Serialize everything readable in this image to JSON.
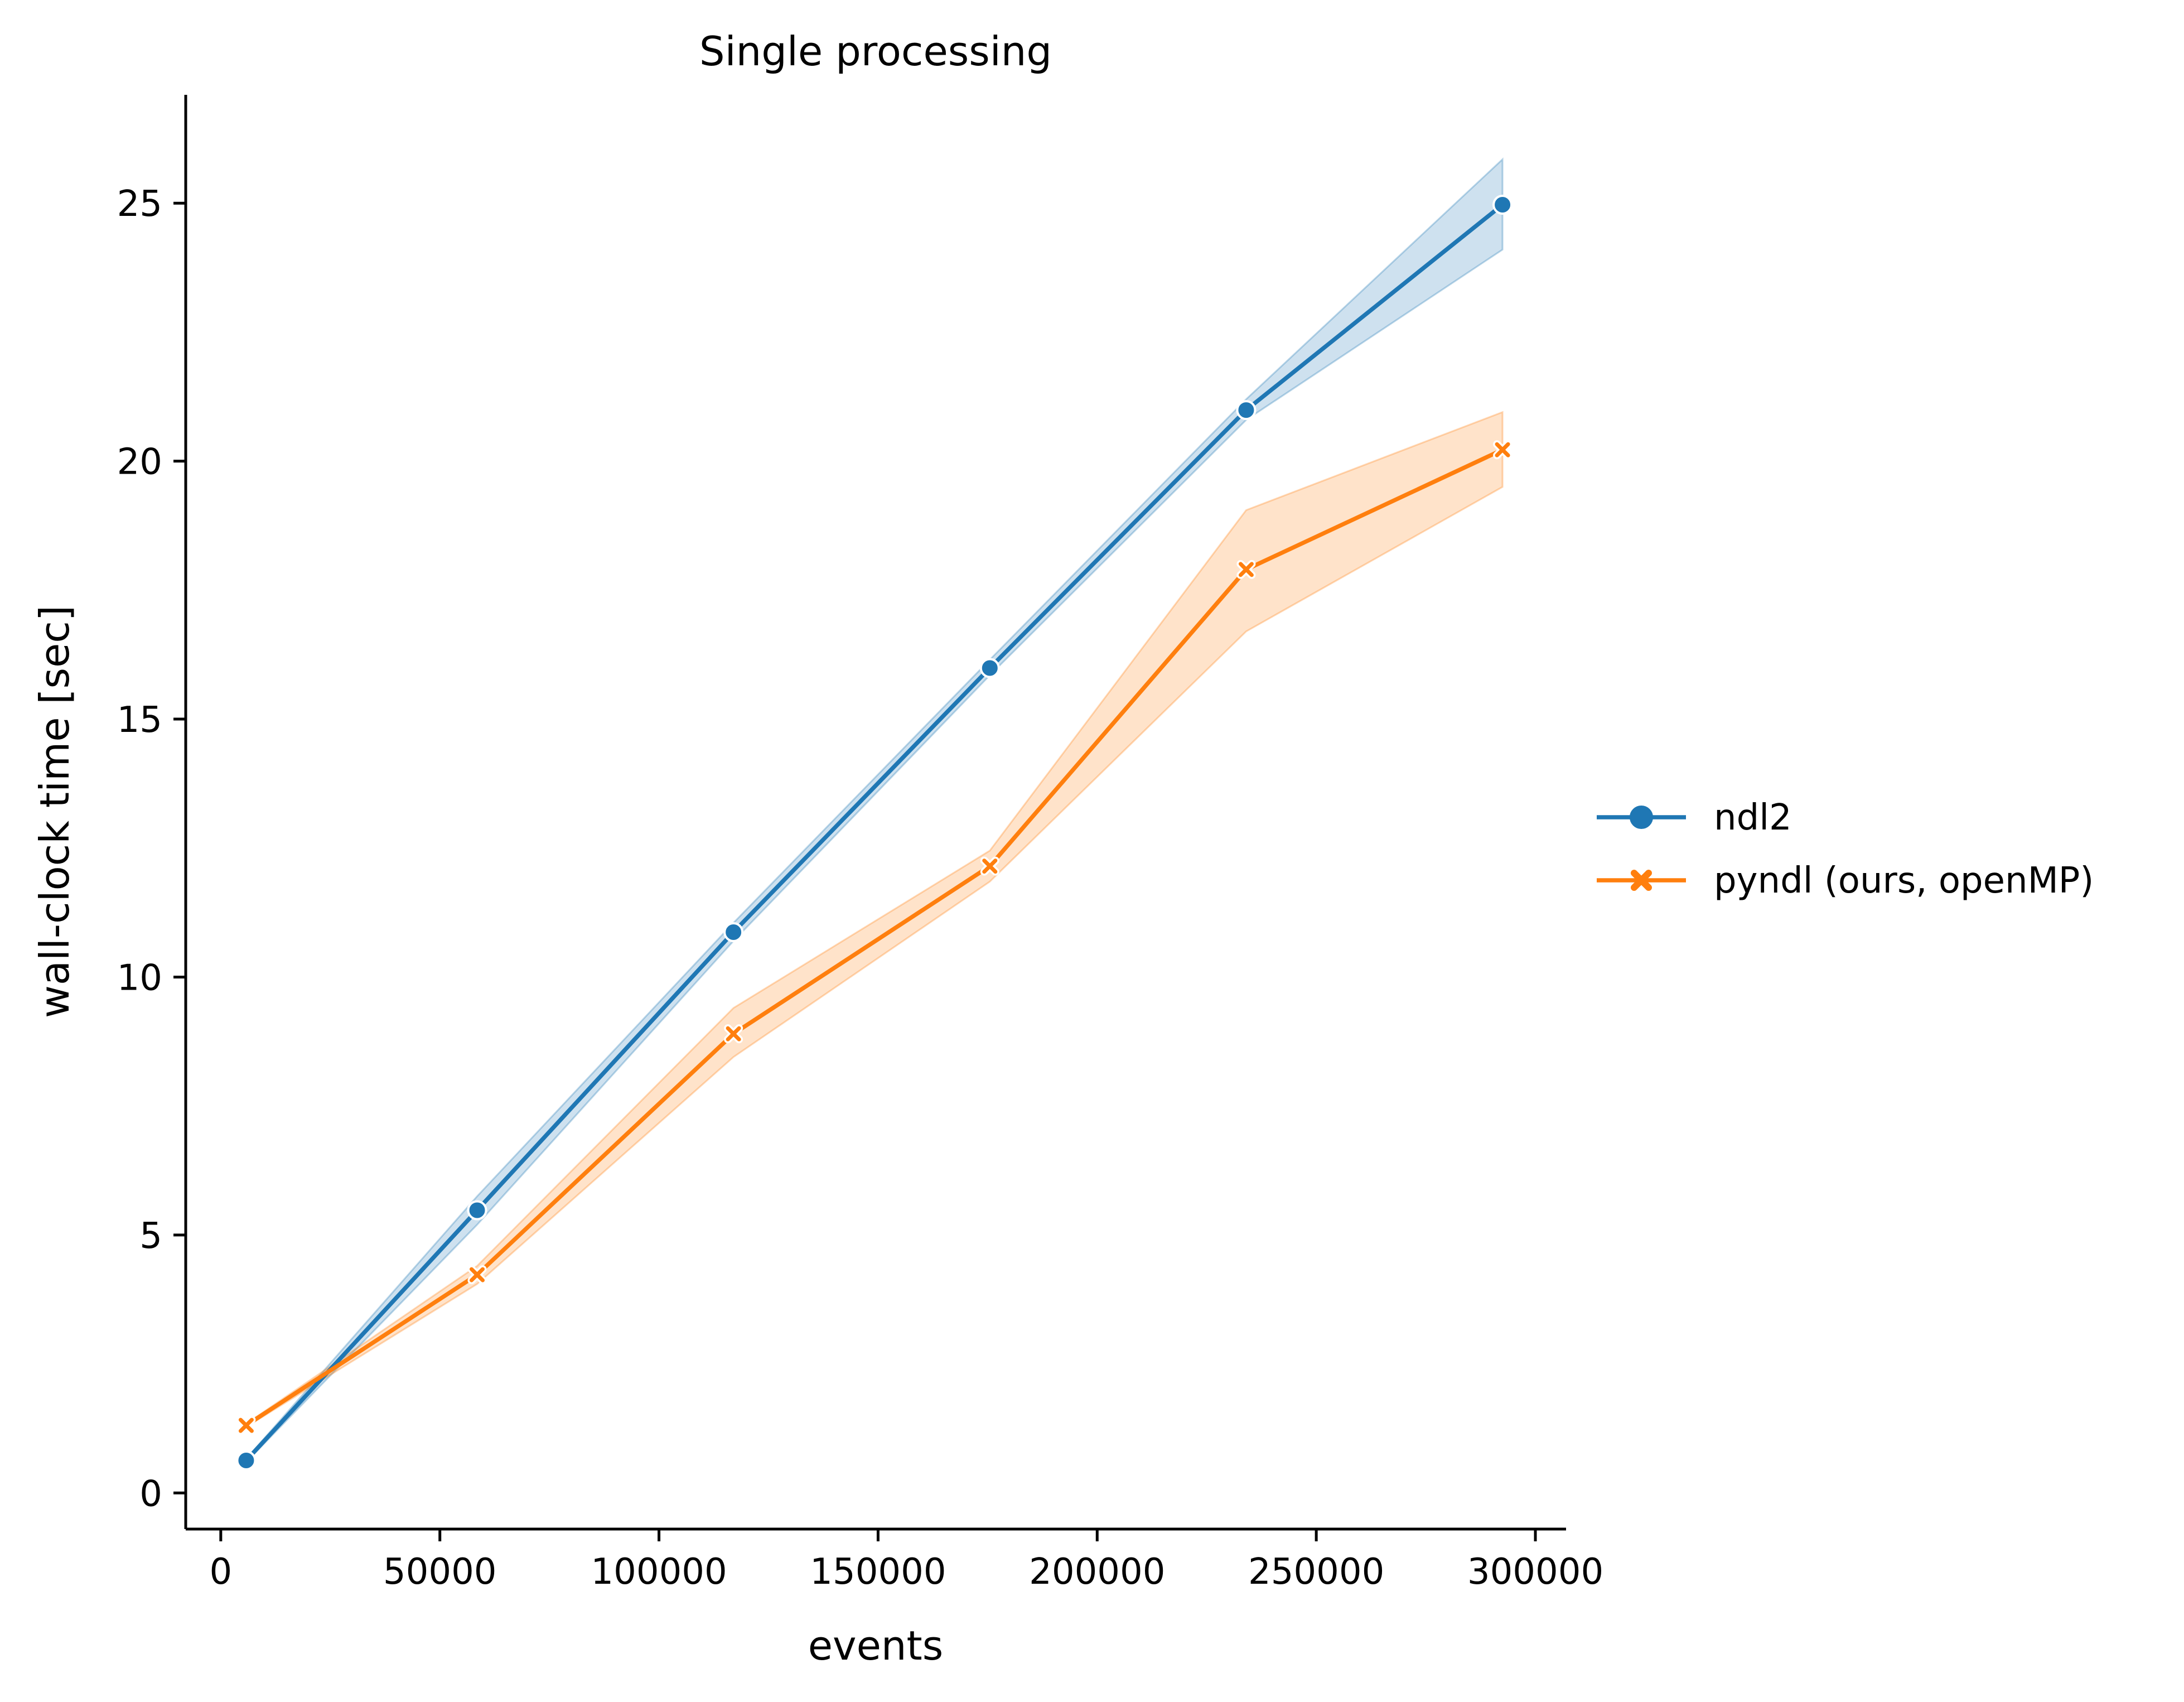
{
  "chart_data": {
    "type": "line",
    "title": "Single processing",
    "xlabel": "events",
    "ylabel": "wall-clock time [sec]",
    "xlim": [
      -8000,
      307000
    ],
    "ylim": [
      -0.7,
      27.1
    ],
    "xticks": [
      0,
      50000,
      100000,
      150000,
      200000,
      250000,
      300000
    ],
    "xtick_labels": [
      "0",
      "50000",
      "100000",
      "150000",
      "200000",
      "250000",
      "300000"
    ],
    "yticks": [
      0,
      5,
      10,
      15,
      20,
      25
    ],
    "ytick_labels": [
      "0",
      "5",
      "10",
      "15",
      "20",
      "25"
    ],
    "grid": false,
    "legend_position": "right, outside plot area",
    "x": [
      5800,
      58500,
      117000,
      175500,
      234000,
      292500
    ],
    "series": [
      {
        "name": "ndl2",
        "color": "#1f77b4",
        "marker": "circle",
        "values": [
          0.63,
          5.48,
          10.87,
          15.99,
          20.99,
          24.97
        ],
        "ci_lower": [
          0.6,
          5.2,
          10.7,
          15.85,
          20.8,
          24.1
        ],
        "ci_upper": [
          0.66,
          5.75,
          11.05,
          16.15,
          21.2,
          25.85
        ]
      },
      {
        "name": "pyndl (ours, openMP)",
        "color": "#ff7f0e",
        "marker": "x",
        "values": [
          1.31,
          4.23,
          8.9,
          12.15,
          17.9,
          20.22
        ],
        "ci_lower": [
          1.28,
          4.05,
          8.45,
          11.85,
          16.7,
          19.5
        ],
        "ci_upper": [
          1.34,
          4.4,
          9.4,
          12.45,
          19.05,
          20.95
        ]
      }
    ]
  }
}
